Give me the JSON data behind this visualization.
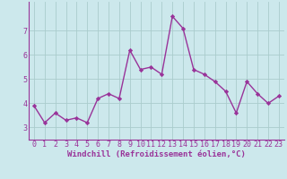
{
  "x": [
    0,
    1,
    2,
    3,
    4,
    5,
    6,
    7,
    8,
    9,
    10,
    11,
    12,
    13,
    14,
    15,
    16,
    17,
    18,
    19,
    20,
    21,
    22,
    23
  ],
  "y": [
    3.9,
    3.2,
    3.6,
    3.3,
    3.4,
    3.2,
    4.2,
    4.4,
    4.2,
    6.2,
    5.4,
    5.5,
    5.2,
    7.6,
    7.1,
    5.4,
    5.2,
    4.9,
    4.5,
    3.6,
    4.9,
    4.4,
    4.0,
    4.3
  ],
  "line_color": "#993399",
  "marker": "D",
  "marker_size": 2.2,
  "line_width": 1.0,
  "bg_color": "#cce8ec",
  "grid_color": "#aacccc",
  "xlabel": "Windchill (Refroidissement éolien,°C)",
  "xlabel_color": "#993399",
  "xlabel_fontsize": 6.5,
  "tick_color": "#993399",
  "tick_fontsize": 6.0,
  "ylim": [
    2.5,
    8.2
  ],
  "xlim": [
    -0.5,
    23.5
  ],
  "yticks": [
    3,
    4,
    5,
    6,
    7
  ],
  "xticks": [
    0,
    1,
    2,
    3,
    4,
    5,
    6,
    7,
    8,
    9,
    10,
    11,
    12,
    13,
    14,
    15,
    16,
    17,
    18,
    19,
    20,
    21,
    22,
    23
  ]
}
